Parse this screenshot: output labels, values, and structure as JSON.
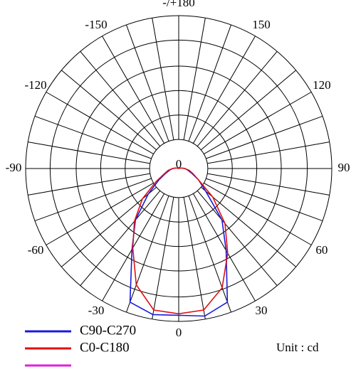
{
  "chart_data": {
    "type": "polar",
    "unit": "Unit : cd",
    "rlim": [
      0,
      100
    ],
    "rticks": [
      0
    ],
    "rgrid": [
      19,
      35,
      51,
      67,
      84,
      100
    ],
    "thetaticks": [
      {
        "value": 180,
        "label": "-/+180"
      },
      -150,
      -120,
      -90,
      -60,
      -30,
      0,
      30,
      60,
      90,
      120,
      150
    ],
    "thetagrid": [
      -170,
      -160,
      -150,
      -140,
      -130,
      -120,
      -110,
      -100,
      -90,
      -80,
      -70,
      -60,
      -50,
      -40,
      -30,
      -20,
      -10,
      0,
      10,
      20,
      30,
      40,
      50,
      60,
      70,
      80,
      90,
      100,
      110,
      120,
      130,
      140,
      150,
      160,
      170,
      180
    ],
    "angles": [
      -120,
      -110,
      -100,
      -90,
      -80,
      -70,
      -60,
      -50,
      -40,
      -30,
      -20,
      -10,
      0,
      10,
      20,
      30,
      40,
      50,
      60,
      70,
      80,
      90,
      100,
      110,
      120
    ],
    "series": [
      {
        "name": "C90-C270",
        "color": "#1a1adc",
        "values": [
          0,
          1,
          2,
          4,
          6,
          9,
          15,
          26,
          44,
          61,
          93,
          97,
          96,
          98,
          93,
          62,
          44,
          23,
          15,
          9,
          6,
          4,
          2,
          1,
          0
        ]
      },
      {
        "name": "C0-C180",
        "color": "#e01010",
        "values": [
          0,
          1,
          2,
          4,
          7,
          10,
          17,
          31,
          45,
          60,
          81,
          94,
          95,
          94,
          83,
          64,
          47,
          29,
          15,
          10,
          7,
          4,
          2,
          1,
          0
        ]
      },
      {
        "color": "#e020e0"
      }
    ]
  }
}
